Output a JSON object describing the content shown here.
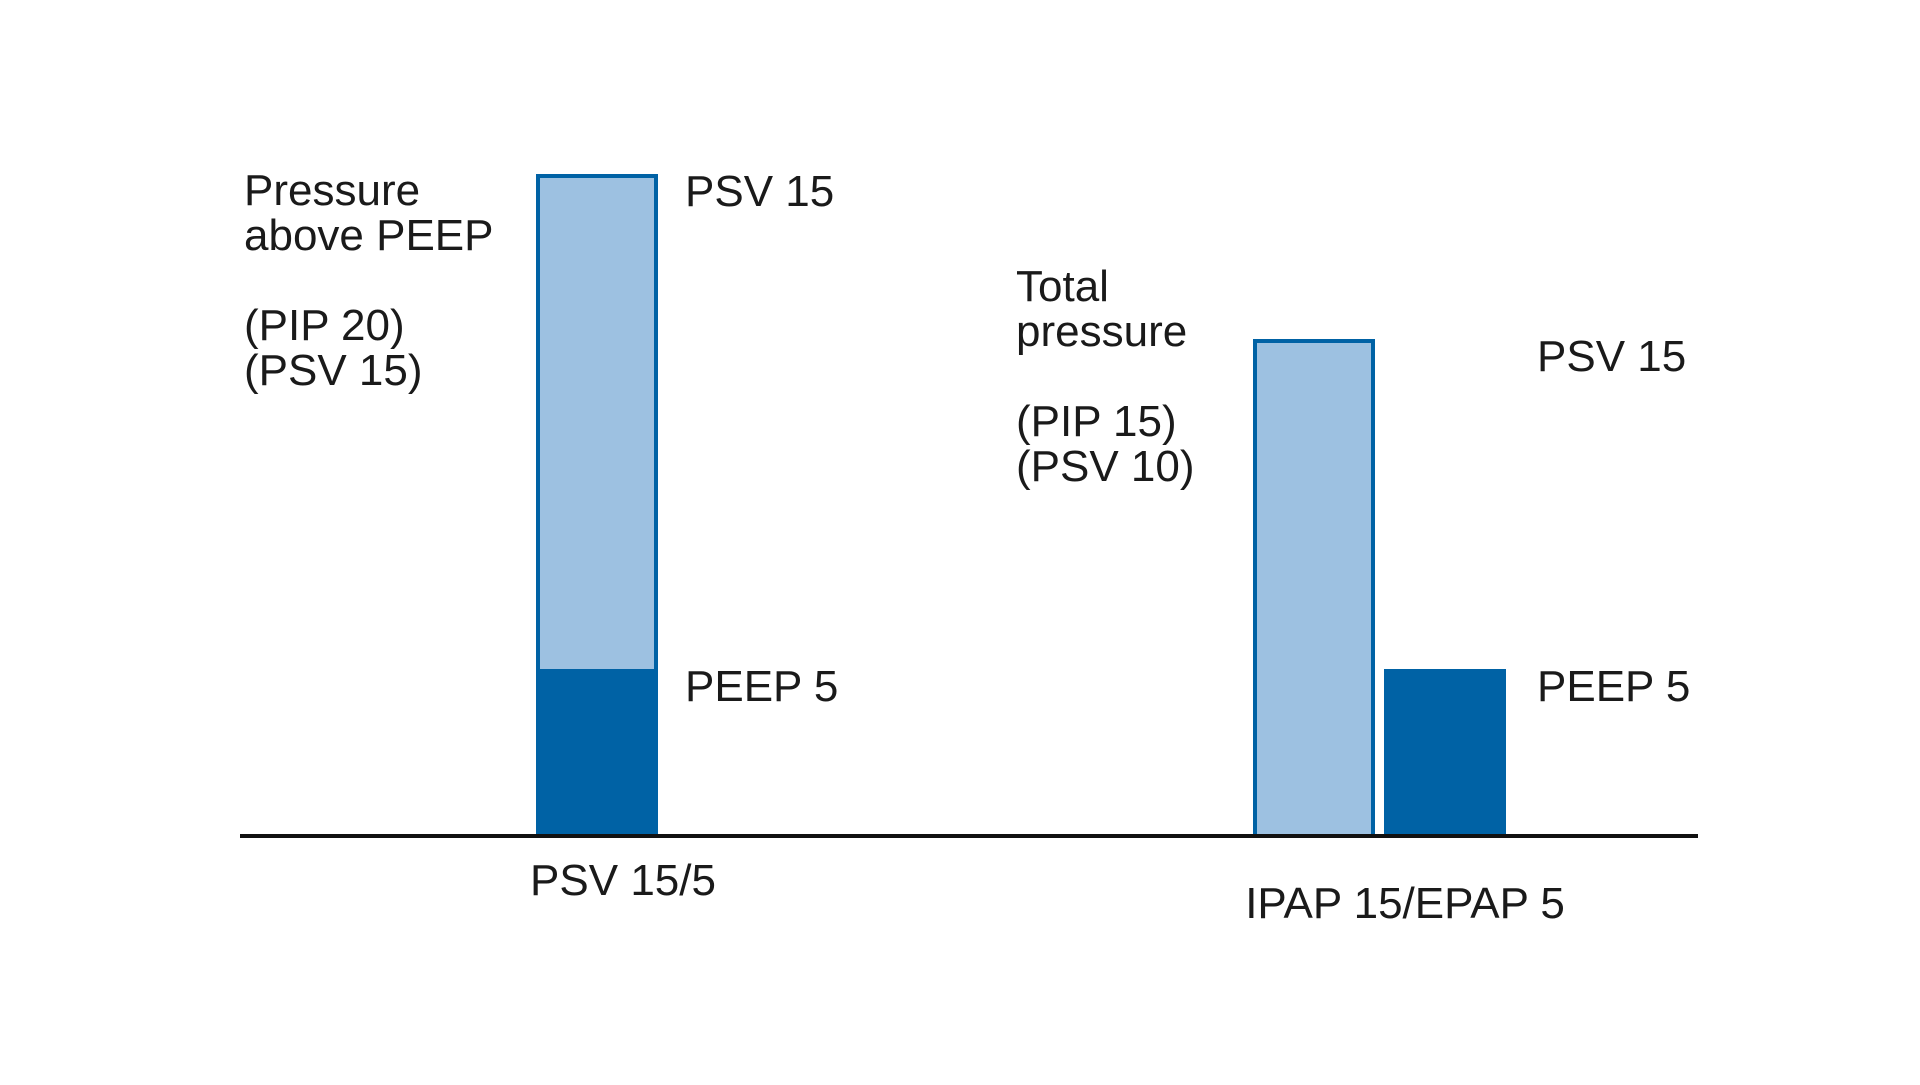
{
  "colors": {
    "light_blue": "#9dc1e1",
    "dark_blue": "#0062a5",
    "outline": "#0062a5",
    "axis": "#111111",
    "text": "#1a1a1a"
  },
  "chart_data": {
    "type": "bar",
    "ylim": [
      0,
      20
    ],
    "grid": false,
    "legend": "none",
    "groups": [
      {
        "category": "PSV 15/5",
        "layout": "stacked",
        "description_lines": [
          "Pressure",
          "above PEEP",
          "",
          "(PIP 20)",
          "(PSV 15)"
        ],
        "segments": [
          {
            "name": "PEEP 5",
            "label": "PEEP 5",
            "value": 5,
            "color": "dark"
          },
          {
            "name": "PSV 15",
            "label": "PSV 15",
            "value": 15,
            "color": "light"
          }
        ]
      },
      {
        "category": "IPAP 15/EPAP 5",
        "layout": "side-by-side",
        "description_lines": [
          "Total",
          "pressure",
          "",
          "(PIP 15)",
          "(PSV 10)"
        ],
        "segments": [
          {
            "name": "PSV 15",
            "label": "PSV 15",
            "value": 15,
            "color": "light"
          },
          {
            "name": "PEEP 5",
            "label": "PEEP 5",
            "value": 5,
            "color": "dark"
          }
        ]
      }
    ]
  }
}
